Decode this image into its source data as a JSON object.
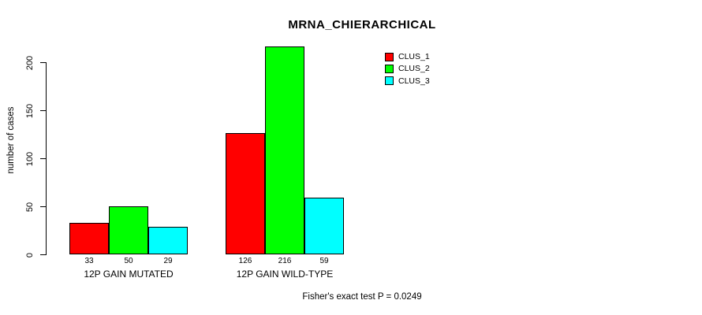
{
  "chart_data": {
    "type": "bar",
    "title": "MRNA_CHIERARCHICAL",
    "ylabel": "number of cases",
    "xlabel": "",
    "ylim": [
      0,
      220
    ],
    "yticks": [
      0,
      50,
      100,
      150,
      200
    ],
    "grid": false,
    "legend_position": "top-right",
    "categories": [
      "12P GAIN MUTATED",
      "12P GAIN WILD-TYPE"
    ],
    "series": [
      {
        "name": "CLUS_1",
        "color": "#ff0000",
        "values": [
          33,
          126
        ]
      },
      {
        "name": "CLUS_2",
        "color": "#00ff00",
        "values": [
          50,
          216
        ]
      },
      {
        "name": "CLUS_3",
        "color": "#00ffff",
        "values": [
          29,
          59
        ]
      }
    ],
    "bar_value_labels": [
      [
        "33",
        "50",
        "29"
      ],
      [
        "126",
        "216",
        "59"
      ]
    ],
    "footnote": "Fisher's exact test P = 0.0249"
  }
}
